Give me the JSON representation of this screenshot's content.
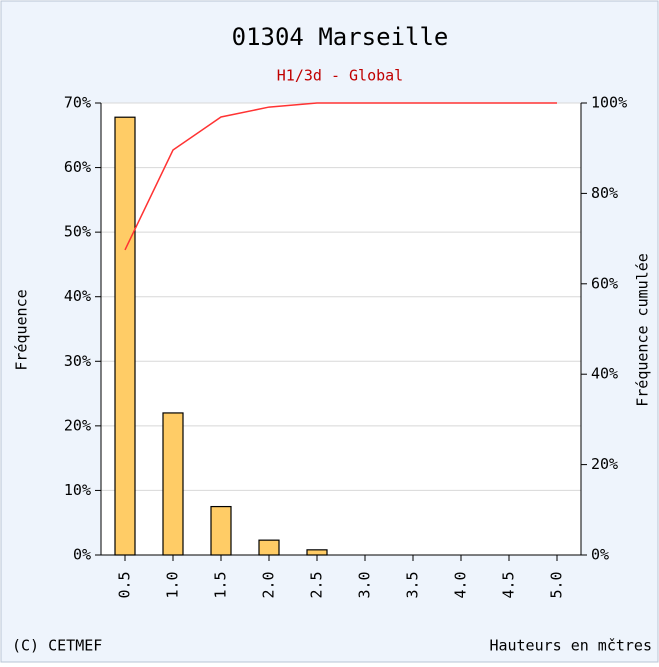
{
  "chart_data": {
    "type": "bar",
    "title": "01304 Marseille",
    "subtitle": "H1/3d - Global",
    "y_label": "Fréquence",
    "y2_label": "Fréquence cumulée",
    "x_label": "Hauteurs en mčtres",
    "footer": "(C) CETMEF",
    "categories": [
      "0.5",
      "1.0",
      "1.5",
      "2.0",
      "2.5",
      "3.0",
      "3.5",
      "4.0",
      "4.5",
      "5.0"
    ],
    "series": [
      {
        "type": "bar",
        "color": "#ffcc66",
        "values": [
          67.8,
          22,
          7.5,
          2.3,
          0.8,
          0,
          0,
          0,
          0,
          0
        ]
      },
      {
        "type": "line",
        "color": "#ff3333",
        "axis": "y2",
        "values": [
          67.5,
          89.6,
          96.9,
          99.1,
          100,
          100,
          100,
          100,
          100,
          100
        ]
      }
    ],
    "ylim": [
      0,
      70
    ],
    "yticks": [
      {
        "value": 0,
        "label": "0%"
      },
      {
        "value": 10,
        "label": "10%"
      },
      {
        "value": 20,
        "label": "20%"
      },
      {
        "value": 30,
        "label": "30%"
      },
      {
        "value": 40,
        "label": "40%"
      },
      {
        "value": 50,
        "label": "50%"
      },
      {
        "value": 60,
        "label": "60%"
      },
      {
        "value": 70,
        "label": "70%"
      }
    ],
    "y2lim": [
      0,
      100
    ],
    "y2ticks": [
      {
        "value": 0,
        "label": "0%"
      },
      {
        "value": 20,
        "label": "20%"
      },
      {
        "value": 40,
        "label": "40%"
      },
      {
        "value": 60,
        "label": "60%"
      },
      {
        "value": 80,
        "label": "80%"
      },
      {
        "value": 100,
        "label": "100%"
      }
    ],
    "grid": true
  }
}
